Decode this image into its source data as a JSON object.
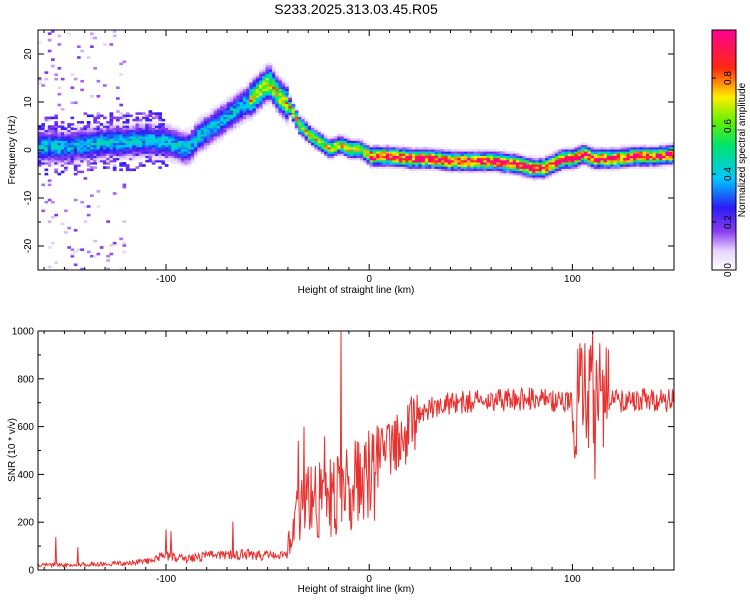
{
  "figure_title": "S233.2025.313.03.45.R05",
  "chart_data": [
    {
      "type": "heatmap",
      "xlabel": "Height of straight line (km)",
      "ylabel": "Frequency (Hz)",
      "xlim": [
        -163,
        150
      ],
      "ylim": [
        -25,
        25
      ],
      "xticks": [
        -100,
        0,
        100
      ],
      "yticks": [
        -20,
        -10,
        0,
        10,
        20
      ],
      "grid": false,
      "colorbar": {
        "label": "Normalized spectral amplitude",
        "range": [
          0,
          1
        ],
        "ticks": [
          "0.0",
          "0.2",
          "0.4",
          "0.6",
          "0.8"
        ],
        "colormap": "white-purple-blue-cyan-green-yellow-red-magenta"
      },
      "ridge_points": [
        [
          -150,
          0.5
        ],
        [
          -140,
          1
        ],
        [
          -130,
          1.5
        ],
        [
          -120,
          1.5
        ],
        [
          -110,
          2
        ],
        [
          -100,
          1.5
        ],
        [
          -90,
          0
        ],
        [
          -85,
          2.5
        ],
        [
          -80,
          4
        ],
        [
          -75,
          5.5
        ],
        [
          -70,
          7
        ],
        [
          -65,
          8.5
        ],
        [
          -60,
          10
        ],
        [
          -55,
          12
        ],
        [
          -50,
          14
        ],
        [
          -45,
          11
        ],
        [
          -40,
          9
        ],
        [
          -35,
          5
        ],
        [
          -30,
          3
        ],
        [
          -25,
          1.5
        ],
        [
          -20,
          0
        ],
        [
          -15,
          1
        ],
        [
          -10,
          0
        ],
        [
          -5,
          0
        ],
        [
          0,
          -1.5
        ],
        [
          10,
          -1.5
        ],
        [
          20,
          -2
        ],
        [
          30,
          -2
        ],
        [
          40,
          -2.5
        ],
        [
          50,
          -2.5
        ],
        [
          60,
          -2.5
        ],
        [
          70,
          -3
        ],
        [
          80,
          -4
        ],
        [
          85,
          -4
        ],
        [
          90,
          -3
        ],
        [
          95,
          -2
        ],
        [
          100,
          -2
        ],
        [
          105,
          -1
        ],
        [
          110,
          -2
        ],
        [
          120,
          -2
        ],
        [
          130,
          -1.5
        ],
        [
          140,
          -1.5
        ],
        [
          150,
          -1
        ]
      ]
    },
    {
      "type": "line",
      "xlabel": "Height of straight line (km)",
      "ylabel": "SNR (10 * v/v)",
      "xlim": [
        -163,
        150
      ],
      "ylim": [
        0,
        1000
      ],
      "xticks": [
        -100,
        0,
        100
      ],
      "yticks": [
        0,
        200,
        400,
        600,
        800,
        1000
      ],
      "grid": false,
      "series": [
        {
          "color": "#e8302e",
          "envelope": [
            [
              -163,
              20
            ],
            [
              -130,
              25
            ],
            [
              -110,
              35
            ],
            [
              -100,
              60
            ],
            [
              -90,
              45
            ],
            [
              -80,
              60
            ],
            [
              -70,
              60
            ],
            [
              -60,
              65
            ],
            [
              -50,
              60
            ],
            [
              -41,
              60
            ],
            [
              -38,
              150
            ],
            [
              -35,
              250
            ],
            [
              -30,
              280
            ],
            [
              -20,
              300
            ],
            [
              -10,
              350
            ],
            [
              0,
              420
            ],
            [
              10,
              520
            ],
            [
              20,
              600
            ],
            [
              30,
              680
            ],
            [
              40,
              700
            ],
            [
              60,
              710
            ],
            [
              80,
              715
            ],
            [
              100,
              700
            ],
            [
              105,
              720
            ],
            [
              110,
              700
            ],
            [
              115,
              705
            ],
            [
              130,
              710
            ],
            [
              150,
              710
            ]
          ],
          "spikes": [
            [
              -100,
              170
            ],
            [
              -35,
              540
            ],
            [
              -32,
              600
            ],
            [
              -22,
              560
            ],
            [
              -14,
              1000
            ],
            [
              -12,
              250
            ],
            [
              110,
              1000
            ],
            [
              109,
              940
            ],
            [
              111,
              380
            ],
            [
              114,
              750
            ]
          ]
        }
      ]
    }
  ]
}
